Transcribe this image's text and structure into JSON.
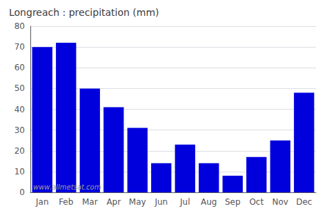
{
  "chart_data": {
    "type": "bar",
    "title": "Longreach : precipitation (mm)",
    "categories": [
      "Jan",
      "Feb",
      "Mar",
      "Apr",
      "May",
      "Jun",
      "Jul",
      "Aug",
      "Sep",
      "Oct",
      "Nov",
      "Dec"
    ],
    "values": [
      70,
      72,
      50,
      41,
      31,
      14,
      23,
      14,
      8,
      17,
      25,
      48
    ],
    "color": "#0000dd",
    "ylim": [
      0,
      80
    ],
    "yticks": [
      0,
      10,
      20,
      30,
      40,
      50,
      60,
      70,
      80
    ],
    "grid": true,
    "annotation": "www.allmetsat.com"
  }
}
